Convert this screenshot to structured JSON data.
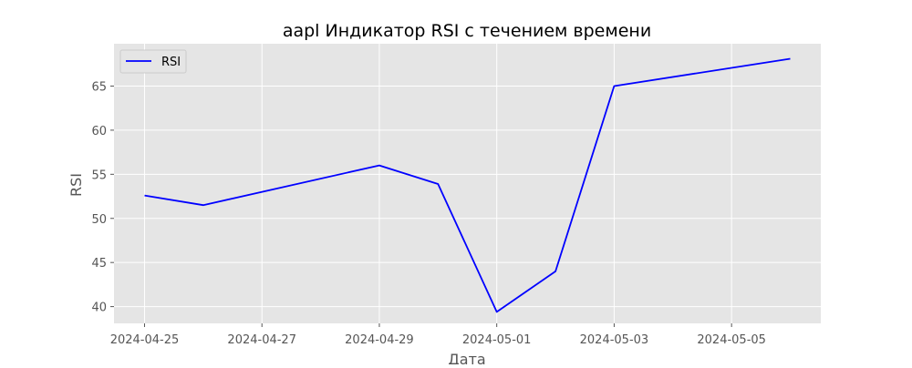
{
  "chart_data": {
    "type": "line",
    "title": "aapl Индикатор RSI с течением времени",
    "xlabel": "Дата",
    "ylabel": "RSI",
    "x": [
      "2024-04-25",
      "2024-04-26",
      "2024-04-29",
      "2024-04-30",
      "2024-05-01",
      "2024-05-02",
      "2024-05-03",
      "2024-05-06"
    ],
    "xlim": [
      "2024-04-24.48",
      "2024-05-06.52"
    ],
    "ylim": [
      38.1,
      69.8
    ],
    "x_ticks": [
      "2024-04-25",
      "2024-04-27",
      "2024-04-29",
      "2024-05-01",
      "2024-05-03",
      "2024-05-05"
    ],
    "y_ticks": [
      40,
      45,
      50,
      55,
      60,
      65
    ],
    "series": [
      {
        "name": "RSI",
        "color": "#0000ff",
        "values": [
          52.6,
          51.5,
          56.0,
          53.9,
          39.4,
          44.0,
          65.0,
          68.1
        ]
      }
    ],
    "legend": {
      "position": "top-left"
    },
    "grid": true,
    "style": {
      "plot_background": "#e5e5e5",
      "grid_color": "#ffffff"
    }
  }
}
